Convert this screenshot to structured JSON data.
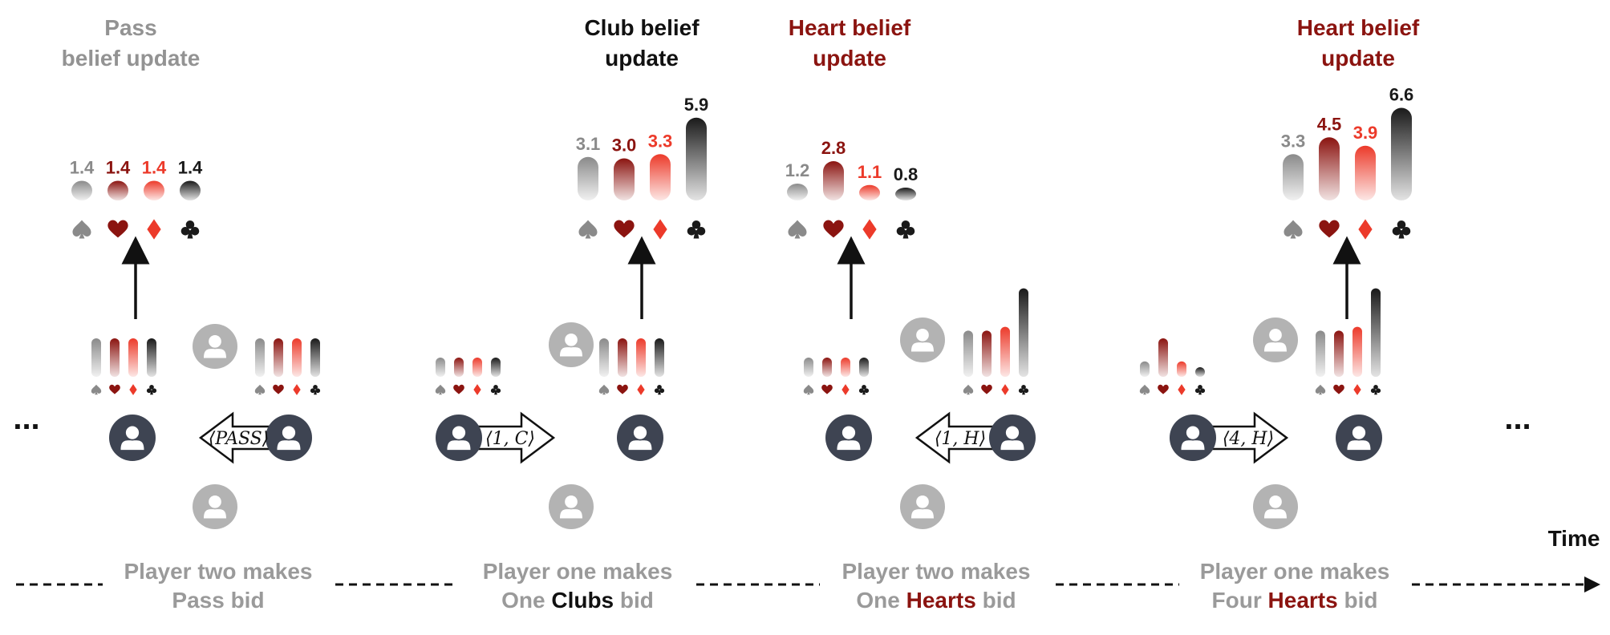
{
  "colors": {
    "spade": "#8a8a8a",
    "heart": "#8b1410",
    "diamond": "#ec3a2a",
    "club": "#1a1a1a",
    "gray_text": "#9a9a9a",
    "player_dark": "#3e4452",
    "player_light": "#b3b3b3"
  },
  "ellipsis": "...",
  "time_label": "Time",
  "panels": [
    {
      "title_lines": [
        "Pass",
        "belief update"
      ],
      "title_color": "#939393",
      "values": [
        1.4,
        1.4,
        1.4,
        1.4
      ],
      "value_labels": [
        "1.4",
        "1.4",
        "1.4",
        "1.4"
      ],
      "bid_label": "⟨PASS⟩",
      "bid_direction": "left",
      "caption_line1": "Player two makes",
      "caption_line2": [
        {
          "text": "Pass bid",
          "hl": false
        }
      ],
      "left_belief": [
        1,
        1,
        1,
        1
      ],
      "right_belief": [
        1,
        1,
        1,
        1
      ]
    },
    {
      "title_lines": [
        "Club belief",
        "update"
      ],
      "title_color": "#111111",
      "values": [
        3.1,
        3.0,
        3.3,
        5.9
      ],
      "value_labels": [
        "3.1",
        "3.0",
        "3.3",
        "5.9"
      ],
      "bid_label": "⟨1, C⟩",
      "bid_direction": "right",
      "caption_line1": "Player one makes",
      "caption_line2": [
        {
          "text": "One ",
          "hl": false
        },
        {
          "text": "Clubs",
          "hl": true,
          "color": "#111111"
        },
        {
          "text": " bid",
          "hl": false
        }
      ],
      "left_belief": [
        0.5,
        0.5,
        0.5,
        0.5
      ],
      "right_belief": [
        1,
        1,
        1,
        1
      ]
    },
    {
      "title_lines": [
        "Heart belief",
        "update"
      ],
      "title_color": "#8b1410",
      "values": [
        1.2,
        2.8,
        1.1,
        0.8
      ],
      "value_labels": [
        "1.2",
        "2.8",
        "1.1",
        "0.8"
      ],
      "bid_label": "⟨1, H⟩",
      "bid_direction": "left",
      "caption_line1": "Player two makes",
      "caption_line2": [
        {
          "text": "One ",
          "hl": false
        },
        {
          "text": "Hearts",
          "hl": true,
          "color": "#8b1410"
        },
        {
          "text": " bid",
          "hl": false
        }
      ],
      "left_belief": [
        0.5,
        0.5,
        0.5,
        0.5
      ],
      "right_belief": [
        1.2,
        1.2,
        1.3,
        2.3
      ]
    },
    {
      "title_lines": [
        "Heart belief",
        "update"
      ],
      "title_color": "#8b1410",
      "values": [
        3.3,
        4.5,
        3.9,
        6.6
      ],
      "value_labels": [
        "3.3",
        "4.5",
        "3.9",
        "6.6"
      ],
      "bid_label": "⟨4, H⟩",
      "bid_direction": "right",
      "caption_line1": "Player one makes",
      "caption_line2": [
        {
          "text": "Four ",
          "hl": false
        },
        {
          "text": "Hearts",
          "hl": true,
          "color": "#8b1410"
        },
        {
          "text": " bid",
          "hl": false
        }
      ],
      "left_belief": [
        0.4,
        1,
        0.4,
        0.25
      ],
      "right_belief": [
        1.2,
        1.2,
        1.3,
        2.3
      ]
    }
  ]
}
